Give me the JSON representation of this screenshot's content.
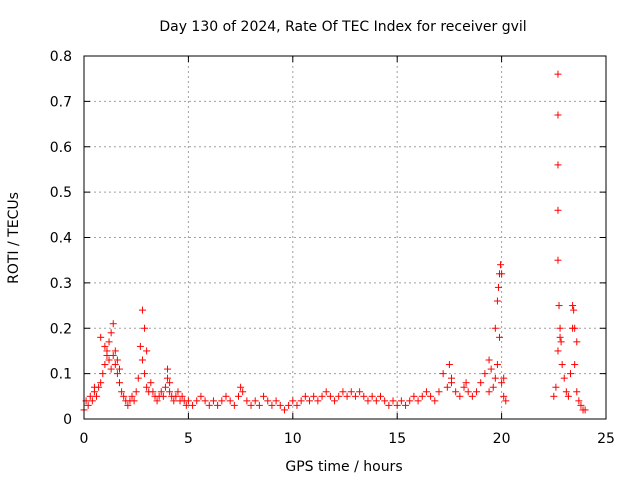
{
  "chart_data": {
    "type": "scatter",
    "title": "Day 130 of 2024, Rate Of TEC Index for receiver gvil",
    "xlabel": "GPS time / hours",
    "ylabel": "ROTI / TECUs",
    "xlim": [
      0,
      25
    ],
    "ylim": [
      0,
      0.8
    ],
    "x_ticks": [
      "0",
      "5",
      "10",
      "15",
      "20",
      "25"
    ],
    "y_ticks": [
      "0",
      "0.1",
      "0.2",
      "0.3",
      "0.4",
      "0.5",
      "0.6",
      "0.7",
      "0.8"
    ],
    "grid": true,
    "marker": "plus",
    "color": "#ff0000",
    "series": [
      {
        "x": [
          0.0,
          0.1,
          0.2,
          0.3,
          0.4,
          0.5,
          0.6,
          0.7,
          0.8,
          0.9,
          1.0,
          1.1,
          1.2,
          1.3,
          1.4,
          1.5,
          1.6,
          1.7,
          1.8,
          1.9,
          2.0,
          2.1,
          2.2,
          2.3,
          2.4,
          2.5,
          2.6,
          2.7,
          2.8,
          2.9,
          3.0,
          3.1,
          3.2,
          3.3,
          3.4,
          3.5,
          3.6,
          3.7,
          3.8,
          3.9,
          4.0,
          4.1,
          4.2,
          4.3,
          4.4,
          4.5,
          4.6,
          4.7,
          4.8,
          4.9,
          5.0,
          5.2,
          5.4,
          5.6,
          5.8,
          6.0,
          6.2,
          6.4,
          6.6,
          6.8,
          7.0,
          7.2,
          7.4,
          7.6,
          7.8,
          8.0,
          8.2,
          8.4,
          8.6,
          8.8,
          9.0,
          9.2,
          9.4,
          9.6,
          9.8,
          10.0,
          10.2,
          10.4,
          10.6,
          10.8,
          11.0,
          11.2,
          11.4,
          11.6,
          11.8,
          12.0,
          12.2,
          12.4,
          12.6,
          12.8,
          13.0,
          13.2,
          13.4,
          13.6,
          13.8,
          14.0,
          14.2,
          14.4,
          14.6,
          14.8,
          15.0,
          15.2,
          15.4,
          15.6,
          15.8,
          16.0,
          16.2,
          16.4,
          16.6,
          16.8,
          17.0,
          17.2,
          17.4,
          17.6,
          17.8,
          18.0,
          18.2,
          18.4,
          18.6,
          18.8,
          19.0,
          19.2,
          19.4,
          19.6,
          19.7,
          19.8,
          19.9,
          20.0,
          20.1,
          20.2,
          22.5,
          22.6,
          22.7,
          22.8,
          22.9,
          23.0,
          23.1,
          23.2,
          23.3,
          23.4,
          23.5,
          23.6,
          23.7,
          23.8,
          23.9,
          24.0,
          0.5,
          0.8,
          1.0,
          1.1,
          1.2,
          1.3,
          1.4,
          1.5,
          1.6,
          1.7,
          2.8,
          2.9,
          3.0,
          4.0,
          4.1,
          7.5,
          17.5,
          17.6,
          18.3,
          19.4,
          19.5,
          19.7,
          19.8,
          19.85,
          19.9,
          19.95,
          20.0,
          20.1,
          22.7,
          22.7,
          22.7,
          22.7,
          22.7,
          22.75,
          22.8,
          22.85,
          23.4,
          23.45,
          23.5,
          23.6
        ],
        "y": [
          0.02,
          0.04,
          0.03,
          0.05,
          0.04,
          0.06,
          0.05,
          0.07,
          0.08,
          0.1,
          0.12,
          0.15,
          0.13,
          0.11,
          0.14,
          0.12,
          0.1,
          0.08,
          0.06,
          0.05,
          0.04,
          0.03,
          0.04,
          0.05,
          0.04,
          0.06,
          0.09,
          0.16,
          0.13,
          0.1,
          0.07,
          0.06,
          0.08,
          0.06,
          0.05,
          0.04,
          0.05,
          0.06,
          0.05,
          0.07,
          0.09,
          0.06,
          0.05,
          0.04,
          0.05,
          0.06,
          0.04,
          0.05,
          0.04,
          0.03,
          0.04,
          0.03,
          0.04,
          0.05,
          0.04,
          0.03,
          0.04,
          0.03,
          0.04,
          0.05,
          0.04,
          0.03,
          0.05,
          0.06,
          0.04,
          0.03,
          0.04,
          0.03,
          0.05,
          0.04,
          0.03,
          0.04,
          0.03,
          0.02,
          0.03,
          0.04,
          0.03,
          0.04,
          0.05,
          0.04,
          0.05,
          0.04,
          0.05,
          0.06,
          0.05,
          0.04,
          0.05,
          0.06,
          0.05,
          0.06,
          0.05,
          0.06,
          0.05,
          0.04,
          0.05,
          0.04,
          0.05,
          0.04,
          0.03,
          0.04,
          0.03,
          0.04,
          0.03,
          0.04,
          0.05,
          0.04,
          0.05,
          0.06,
          0.05,
          0.04,
          0.06,
          0.1,
          0.07,
          0.08,
          0.06,
          0.05,
          0.07,
          0.06,
          0.05,
          0.06,
          0.08,
          0.1,
          0.06,
          0.07,
          0.09,
          0.12,
          0.18,
          0.08,
          0.05,
          0.04,
          0.05,
          0.07,
          0.15,
          0.18,
          0.12,
          0.09,
          0.06,
          0.05,
          0.1,
          0.2,
          0.12,
          0.06,
          0.04,
          0.03,
          0.02,
          0.02,
          0.07,
          0.18,
          0.16,
          0.14,
          0.17,
          0.19,
          0.21,
          0.15,
          0.13,
          0.11,
          0.24,
          0.2,
          0.15,
          0.11,
          0.08,
          0.07,
          0.12,
          0.09,
          0.08,
          0.13,
          0.11,
          0.2,
          0.26,
          0.29,
          0.32,
          0.34,
          0.32,
          0.09,
          0.76,
          0.67,
          0.56,
          0.46,
          0.35,
          0.25,
          0.2,
          0.17,
          0.25,
          0.24,
          0.2,
          0.17
        ]
      }
    ]
  }
}
